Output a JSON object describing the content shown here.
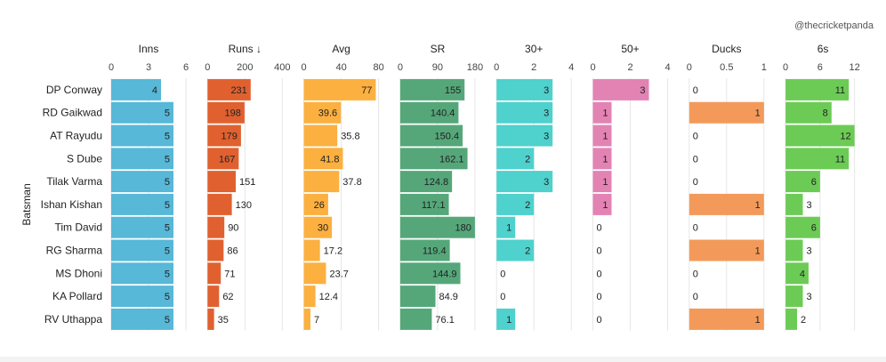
{
  "credit": "@thecricketpanda",
  "chart_data": {
    "type": "bar",
    "orientation": "horizontal",
    "y_axis_label": "Batsman",
    "categories": [
      "DP Conway",
      "RD Gaikwad",
      "AT Rayudu",
      "S Dube",
      "Tilak Varma",
      "Ishan Kishan",
      "Tim David",
      "RG Sharma",
      "MS Dhoni",
      "KA Pollard",
      "RV Uthappa"
    ],
    "panels": [
      {
        "name": "Inns",
        "color": "#57b8d8",
        "xlim": [
          0,
          6
        ],
        "ticks": [
          0,
          3,
          6
        ],
        "tick_labels": [
          "0",
          "3",
          "6"
        ],
        "values": [
          4,
          5,
          5,
          5,
          5,
          5,
          5,
          5,
          5,
          5,
          5
        ],
        "labels": [
          "4",
          "5",
          "5",
          "5",
          "5",
          "5",
          "5",
          "5",
          "5",
          "5",
          "5"
        ]
      },
      {
        "name": "Runs ↓",
        "color": "#e0612f",
        "xlim": [
          0,
          400
        ],
        "ticks": [
          0,
          200,
          400
        ],
        "tick_labels": [
          "0",
          "200",
          "400"
        ],
        "values": [
          231,
          198,
          179,
          167,
          151,
          130,
          90,
          86,
          71,
          62,
          35
        ],
        "labels": [
          "231",
          "198",
          "179",
          "167",
          "151",
          "130",
          "90",
          "86",
          "71",
          "62",
          "35"
        ]
      },
      {
        "name": "Avg",
        "color": "#fbb040",
        "xlim": [
          0,
          80
        ],
        "ticks": [
          0,
          40,
          80
        ],
        "tick_labels": [
          "0",
          "40",
          "80"
        ],
        "values": [
          77,
          39.6,
          35.8,
          41.8,
          37.8,
          26,
          30,
          17.2,
          23.7,
          12.4,
          7
        ],
        "labels": [
          "77",
          "39.6",
          "35.8",
          "41.8",
          "37.8",
          "26",
          "30",
          "17.2",
          "23.7",
          "12.4",
          "7"
        ]
      },
      {
        "name": "SR",
        "color": "#55a77a",
        "xlim": [
          0,
          180
        ],
        "ticks": [
          0,
          90,
          180
        ],
        "tick_labels": [
          "0",
          "90",
          "180"
        ],
        "values": [
          155,
          140.4,
          150.4,
          162.1,
          124.8,
          117.1,
          180,
          119.4,
          144.9,
          84.9,
          76.1
        ],
        "labels": [
          "155",
          "140.4",
          "150.4",
          "162.1",
          "124.8",
          "117.1",
          "180",
          "119.4",
          "144.9",
          "84.9",
          "76.1"
        ]
      },
      {
        "name": "30+",
        "color": "#4fd1cd",
        "xlim": [
          0,
          4
        ],
        "ticks": [
          0,
          2,
          4
        ],
        "tick_labels": [
          "0",
          "2",
          "4"
        ],
        "values": [
          3,
          3,
          3,
          2,
          3,
          2,
          1,
          2,
          0,
          0,
          1
        ],
        "labels": [
          "3",
          "3",
          "3",
          "2",
          "3",
          "2",
          "1",
          "2",
          "0",
          "0",
          "1"
        ]
      },
      {
        "name": "50+",
        "color": "#e383b4",
        "xlim": [
          0,
          4
        ],
        "ticks": [
          0,
          2,
          4
        ],
        "tick_labels": [
          "0",
          "2",
          "4"
        ],
        "values": [
          3,
          1,
          1,
          1,
          1,
          1,
          0,
          0,
          0,
          0,
          0
        ],
        "labels": [
          "3",
          "1",
          "1",
          "1",
          "1",
          "1",
          "0",
          "0",
          "0",
          "0",
          "0"
        ]
      },
      {
        "name": "Ducks",
        "color": "#f39a5a",
        "xlim": [
          0,
          1
        ],
        "ticks": [
          0,
          0.5,
          1
        ],
        "tick_labels": [
          "0",
          "0.5",
          "1"
        ],
        "values": [
          0,
          1,
          0,
          0,
          0,
          1,
          0,
          1,
          0,
          0,
          1
        ],
        "labels": [
          "0",
          "1",
          "0",
          "0",
          "0",
          "1",
          "0",
          "1",
          "0",
          "0",
          "1"
        ]
      },
      {
        "name": "6s",
        "color": "#6ccb55",
        "xlim": [
          0,
          13
        ],
        "ticks": [
          0,
          6,
          12
        ],
        "tick_labels": [
          "0",
          "6",
          "12"
        ],
        "values": [
          11,
          8,
          12,
          11,
          6,
          3,
          6,
          3,
          4,
          3,
          2
        ],
        "labels": [
          "11",
          "8",
          "12",
          "11",
          "6",
          "3",
          "6",
          "3",
          "4",
          "3",
          "2"
        ]
      }
    ]
  }
}
